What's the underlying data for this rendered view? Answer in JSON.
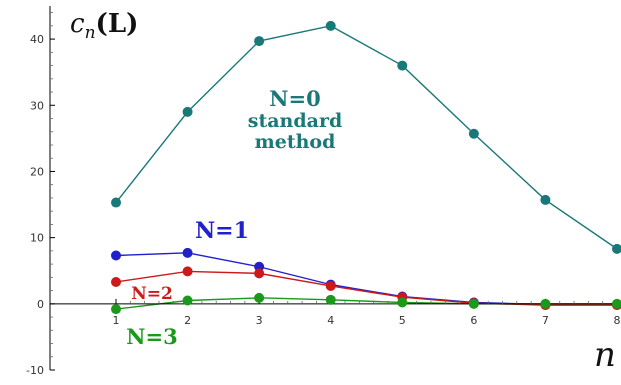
{
  "chart_data": {
    "type": "line",
    "ylabel": "c_n(L)",
    "ylabel_main": "c",
    "ylabel_sub": "n",
    "ylabel_suffix": "(L)",
    "xlabel": "n",
    "xlim": [
      1,
      8
    ],
    "ylim": [
      -10,
      45
    ],
    "x_ticks": [
      1,
      2,
      3,
      4,
      5,
      6,
      7,
      8
    ],
    "y_ticks": [
      -10,
      0,
      10,
      20,
      30,
      40
    ],
    "grid": false,
    "x": [
      1,
      2,
      3,
      4,
      5,
      6,
      7,
      8
    ],
    "series": [
      {
        "name": "N=0",
        "annotation_lines": [
          "N=0",
          "standard",
          "method"
        ],
        "color": "#1a7878",
        "values": [
          15.3,
          29.0,
          39.7,
          42.0,
          36.0,
          25.7,
          15.7,
          8.3
        ]
      },
      {
        "name": "N=1",
        "annotation_lines": [
          "N=1"
        ],
        "color": "#2020cc",
        "values": [
          7.3,
          7.7,
          5.6,
          2.9,
          1.1,
          0.2,
          -0.1,
          -0.1
        ]
      },
      {
        "name": "N=2",
        "annotation_lines": [
          "N=2"
        ],
        "color": "#cc1a1a",
        "values": [
          3.3,
          4.9,
          4.6,
          2.7,
          1.0,
          0.1,
          -0.2,
          -0.2
        ]
      },
      {
        "name": "N=3",
        "annotation_lines": [
          "N=3"
        ],
        "color": "#1a991a",
        "values": [
          -0.8,
          0.5,
          0.9,
          0.6,
          0.2,
          0.0,
          0.0,
          0.0
        ]
      }
    ]
  }
}
